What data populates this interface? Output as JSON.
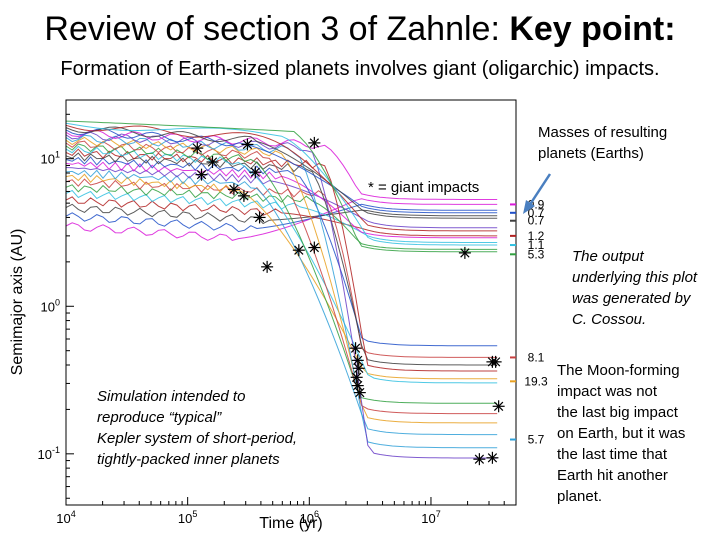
{
  "slide": {
    "title_prefix": "Review of section 3 of Zahnle: ",
    "title_bold": "Key point:",
    "subtitle": "Formation of Earth-sized planets involves giant (oligarchic) impacts."
  },
  "annotations": {
    "masses_label_line1": "Masses of resulting",
    "masses_label_line2": "planets (Earths)",
    "giant_impacts_label": "* = giant impacts",
    "output_note": [
      "The output",
      "underlying this plot",
      "was generated by",
      "C. Cossou."
    ],
    "moon_note": [
      "The Moon-forming",
      "impact was not",
      "the last big impact",
      "on Earth, but it was",
      "the last time that",
      "Earth hit another",
      "planet."
    ],
    "simulation_note": [
      "Simulation intended to",
      "reproduce “typical”",
      "Kepler system of short-period,",
      "tightly-packed inner planets"
    ]
  },
  "colors": {
    "masses": [
      "#d91ad9",
      "#2050c8",
      "#404040",
      "#b02020",
      "#30c0e0",
      "#30a040",
      "#c84040",
      "#e8a020",
      "#30a0d8",
      "#6a3fc8"
    ],
    "grid": "#d8d8d8",
    "star": "#000000"
  },
  "chart_data": {
    "type": "line",
    "xlabel": "Time (yr)",
    "ylabel": "Semimajor axis (AU)",
    "x_scale": "log",
    "y_scale": "log",
    "xlim": [
      10000,
      50000000
    ],
    "ylim": [
      0.045,
      25
    ],
    "x_ticks": [
      {
        "value": 10000,
        "base": "10",
        "exp": "4"
      },
      {
        "value": 100000,
        "base": "10",
        "exp": "5"
      },
      {
        "value": 1000000,
        "base": "10",
        "exp": "6"
      },
      {
        "value": 10000000,
        "base": "10",
        "exp": "7"
      }
    ],
    "y_ticks": [
      {
        "value": 0.1,
        "base": "10",
        "exp": "-1"
      },
      {
        "value": 1,
        "base": "10",
        "exp": "0"
      },
      {
        "value": 10,
        "base": "10",
        "exp": "1"
      }
    ],
    "final_masses": [
      {
        "label": "0.9",
        "a": 4.9
      },
      {
        "label": "0.7",
        "a": 4.3
      },
      {
        "label": "0.7",
        "a": 3.8
      },
      {
        "label": "1.2",
        "a": 3.0
      },
      {
        "label": "1.1",
        "a": 2.6
      },
      {
        "label": "5.3",
        "a": 2.25
      },
      {
        "label": "8.1",
        "a": 0.45
      },
      {
        "label": "19.3",
        "a": 0.31
      },
      {
        "label": "5.7",
        "a": 0.125
      }
    ],
    "grid": false,
    "legend": "none"
  }
}
